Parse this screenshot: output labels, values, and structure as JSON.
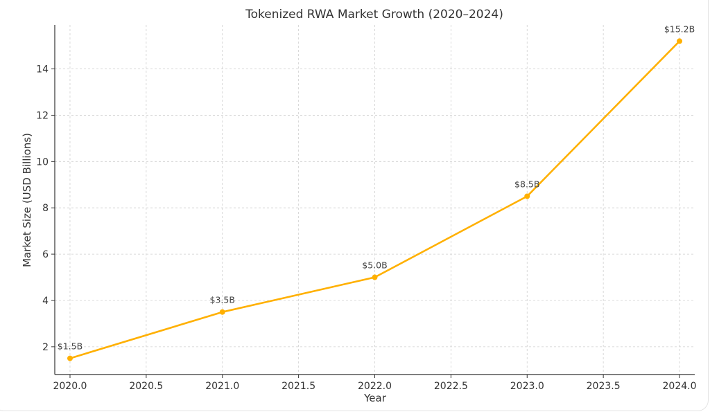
{
  "chart_data": {
    "type": "line",
    "title": "Tokenized RWA Market Growth (2020–2024)",
    "xlabel": "Year",
    "ylabel": "Market Size (USD Billions)",
    "x": [
      2020,
      2021,
      2022,
      2023,
      2024
    ],
    "series": [
      {
        "values": [
          1.5,
          3.5,
          5.0,
          8.5,
          15.2
        ],
        "color": "#FFB000",
        "data_labels": [
          "$1.5B",
          "$3.5B",
          "$5.0B",
          "$8.5B",
          "$15.2B"
        ]
      }
    ],
    "xticks": [
      "2020.0",
      "2020.5",
      "2021.0",
      "2021.5",
      "2022.0",
      "2022.5",
      "2023.0",
      "2023.5",
      "2024.0"
    ],
    "xtick_values": [
      2020.0,
      2020.5,
      2021.0,
      2021.5,
      2022.0,
      2022.5,
      2023.0,
      2023.5,
      2024.0
    ],
    "yticks": [
      "2",
      "4",
      "6",
      "8",
      "10",
      "12",
      "14"
    ],
    "ytick_values": [
      2,
      4,
      6,
      8,
      10,
      12,
      14
    ],
    "xlim": [
      2019.9,
      2024.1
    ],
    "ylim": [
      0.8,
      15.9
    ],
    "grid": true,
    "grid_style": "dashed",
    "legend": false
  }
}
